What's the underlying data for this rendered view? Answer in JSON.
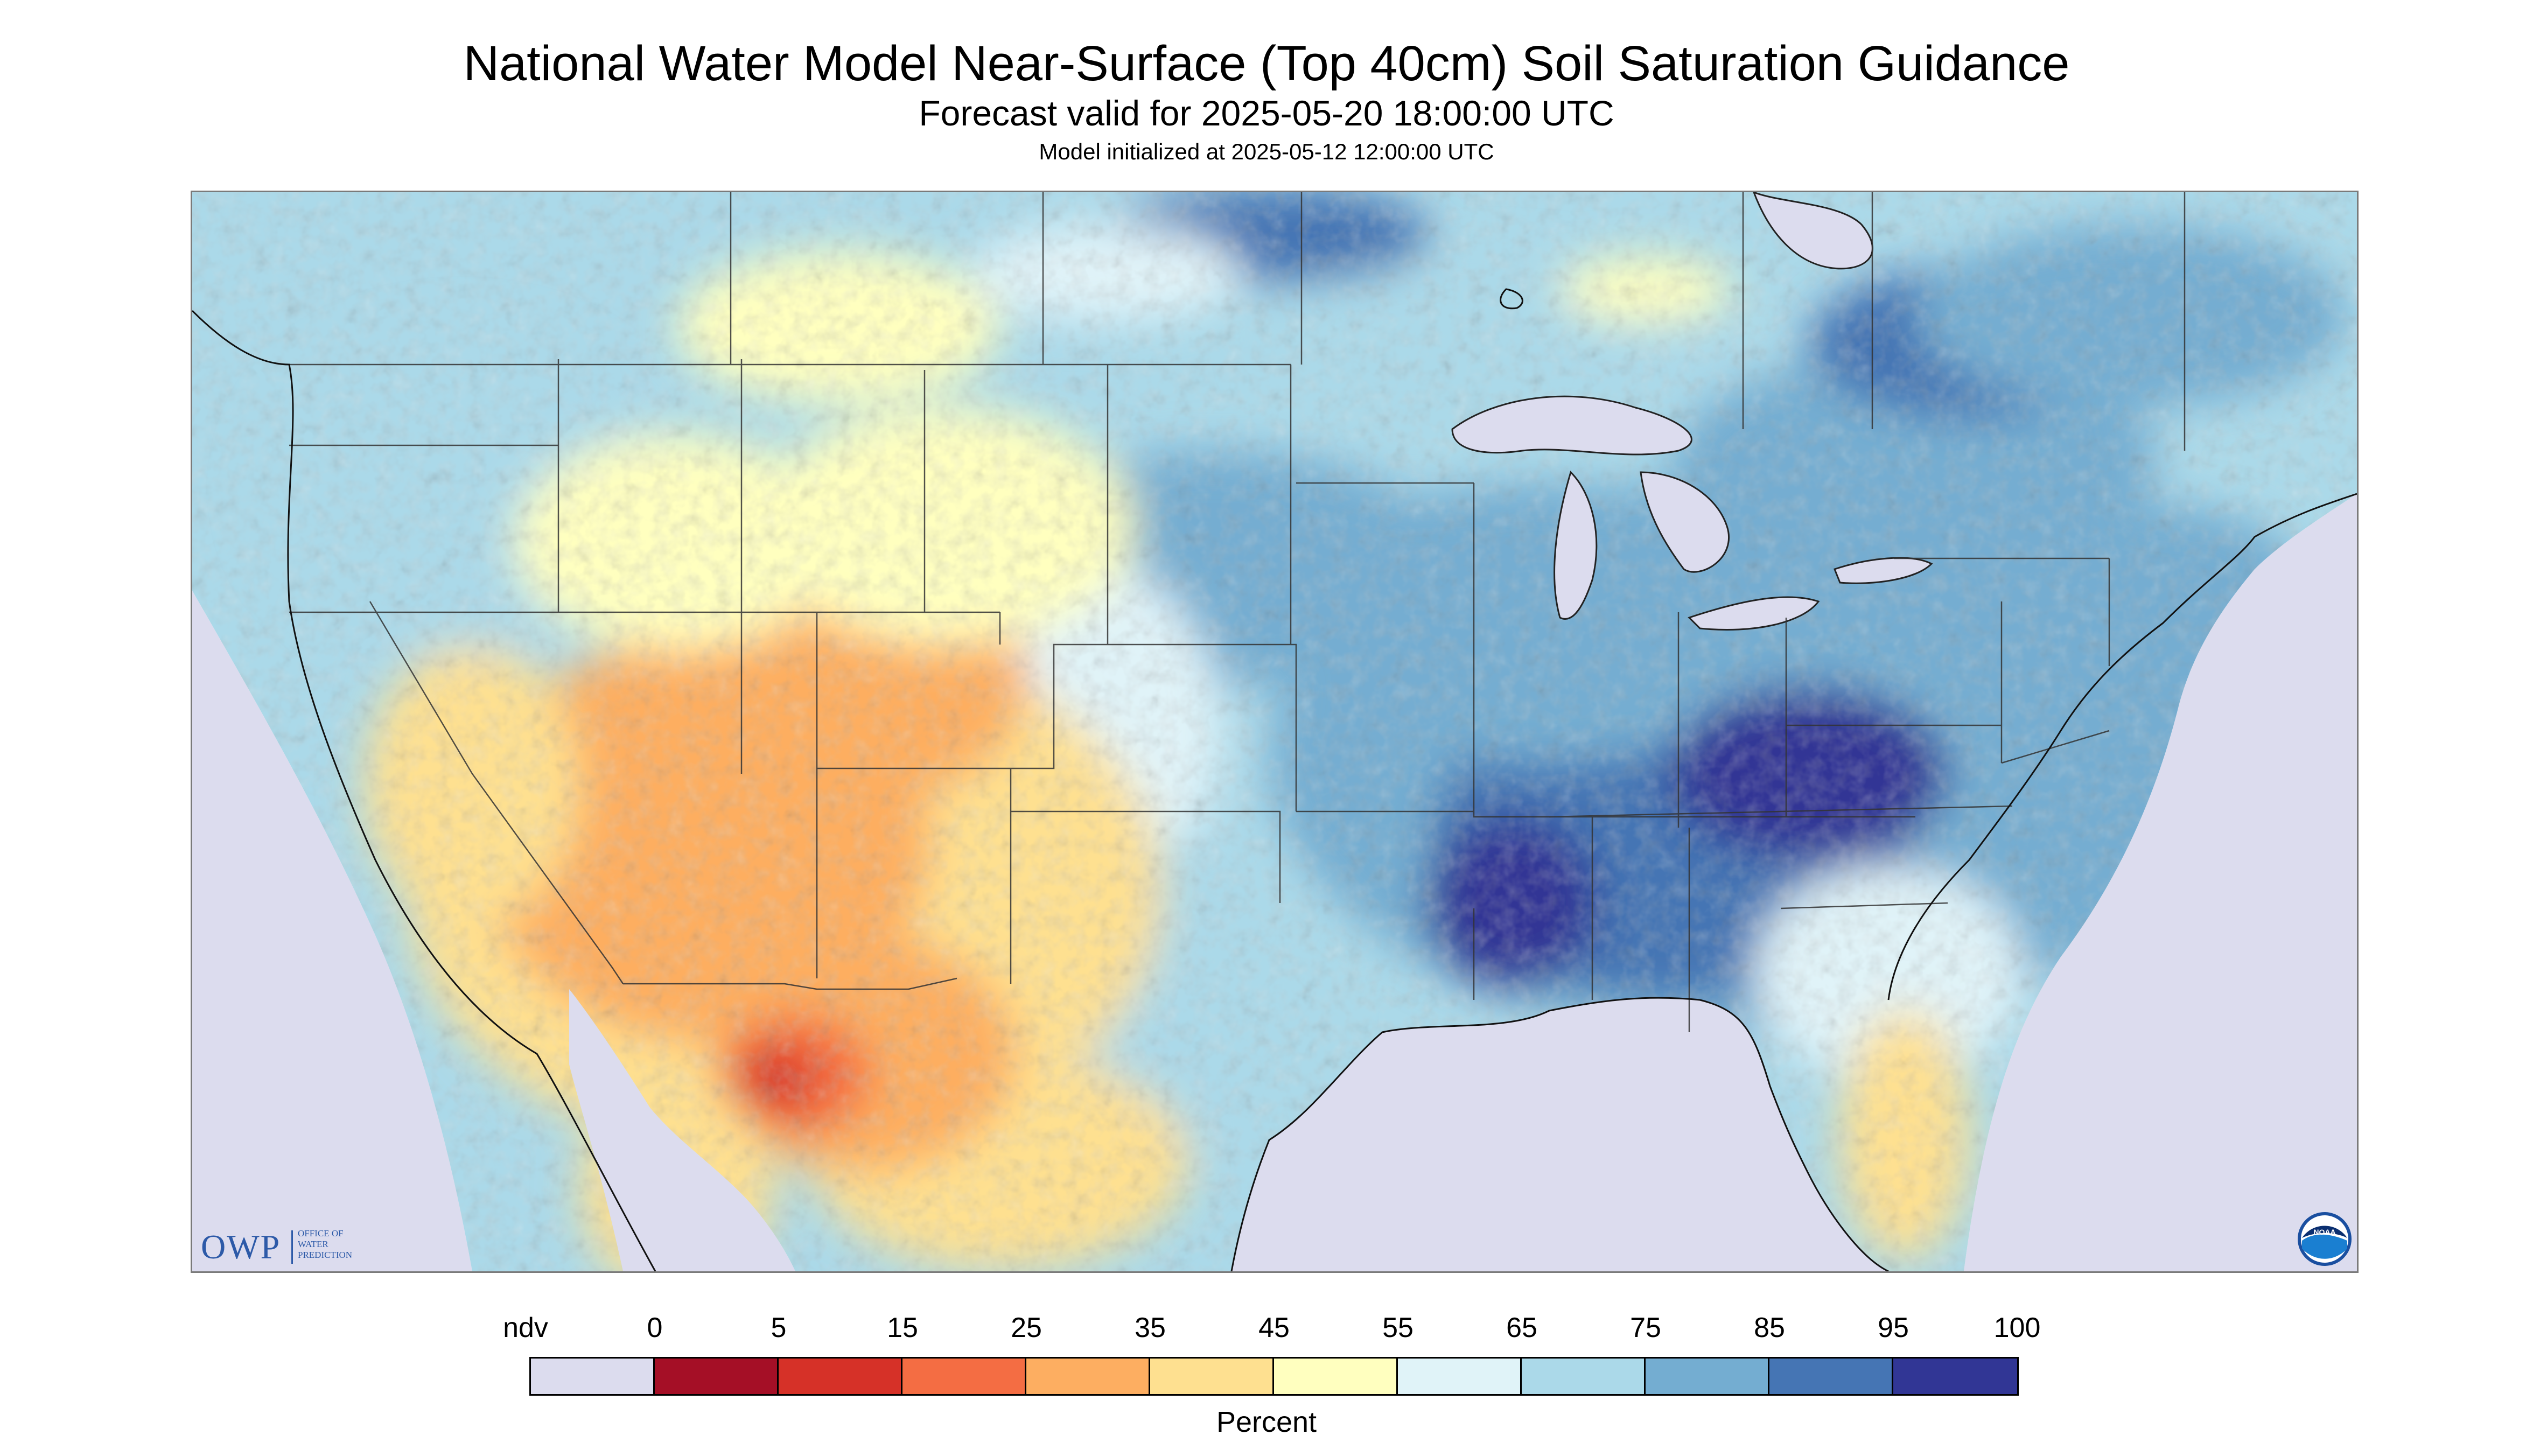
{
  "title": "National Water Model Near-Surface (Top 40cm) Soil Saturation Guidance",
  "forecast_valid": "Forecast valid for 2025-05-20 18:00:00 UTC",
  "model_initialized": "Model initialized at 2025-05-12 12:00:00 UTC",
  "logos": {
    "owp_letters": "OWP",
    "owp_subtitle": "OFFICE OF WATER PREDICTION",
    "noaa": "NOAA"
  },
  "colorbar": {
    "units": "Percent",
    "tick_labels": [
      "ndv",
      "0",
      "5",
      "15",
      "25",
      "35",
      "45",
      "55",
      "65",
      "75",
      "85",
      "95",
      "100"
    ],
    "colors": [
      "#dcdcee",
      "#a50f26",
      "#d63128",
      "#f46d43",
      "#fdae61",
      "#fee090",
      "#ffffbf",
      "#e0f3f8",
      "#abd9e9",
      "#74add1",
      "#4575b4",
      "#313695"
    ]
  },
  "map_colors": {
    "no_data": "#dcdcee",
    "land_boundary": "#222222"
  }
}
